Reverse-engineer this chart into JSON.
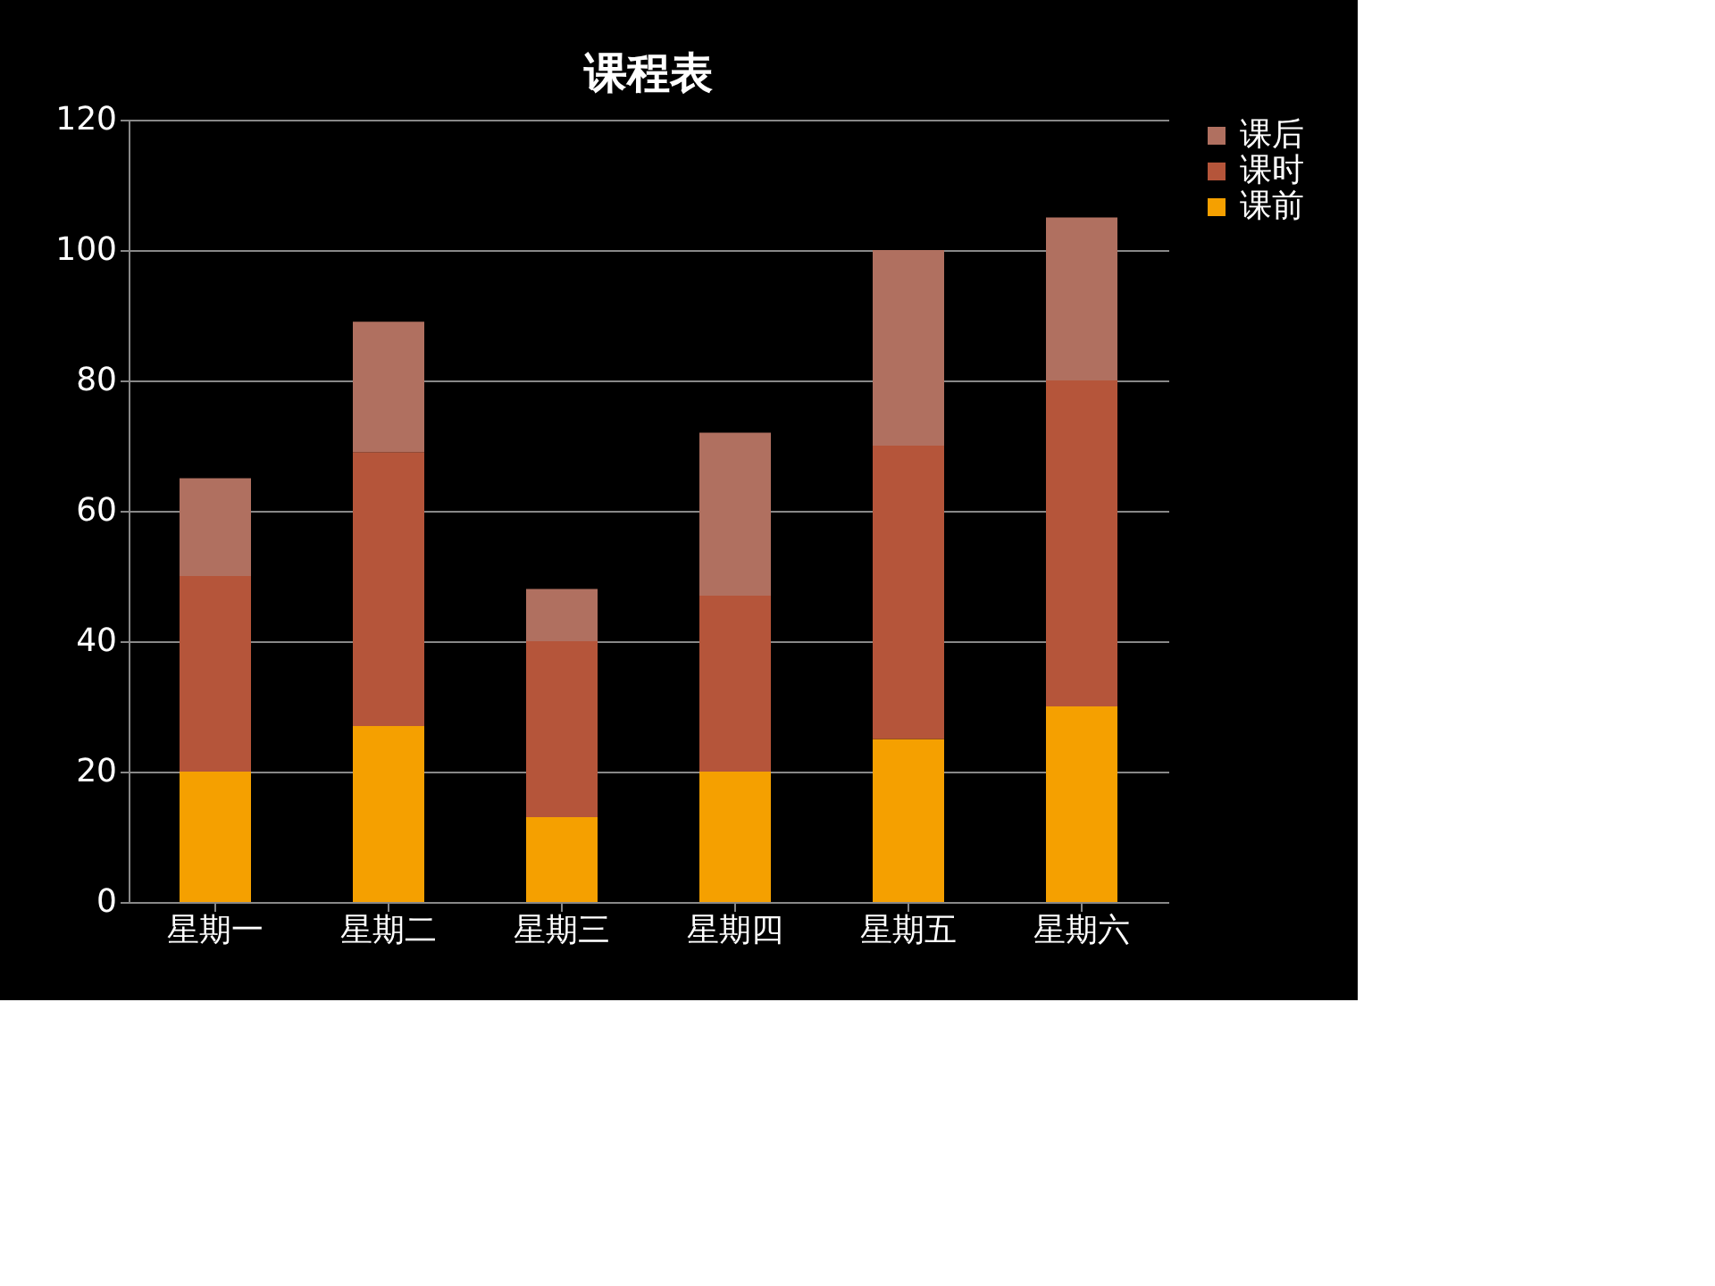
{
  "chart_data": {
    "type": "bar",
    "title": "课程表",
    "stacked": true,
    "categories": [
      "星期一",
      "星期二",
      "星期三",
      "星期四",
      "星期五",
      "星期六"
    ],
    "series": [
      {
        "name": "课前",
        "color": "#f5a000",
        "values": [
          20,
          27,
          13,
          20,
          25,
          30
        ]
      },
      {
        "name": "课时",
        "color": "#b5553a",
        "values": [
          30,
          42,
          27,
          27,
          45,
          50
        ]
      },
      {
        "name": "课后",
        "color": "#b07060",
        "values": [
          15,
          20,
          8,
          25,
          30,
          25
        ]
      }
    ],
    "ylim": [
      0,
      120
    ],
    "yticks": [
      0,
      20,
      40,
      60,
      80,
      100,
      120
    ],
    "grid": "y",
    "legend": "right"
  }
}
